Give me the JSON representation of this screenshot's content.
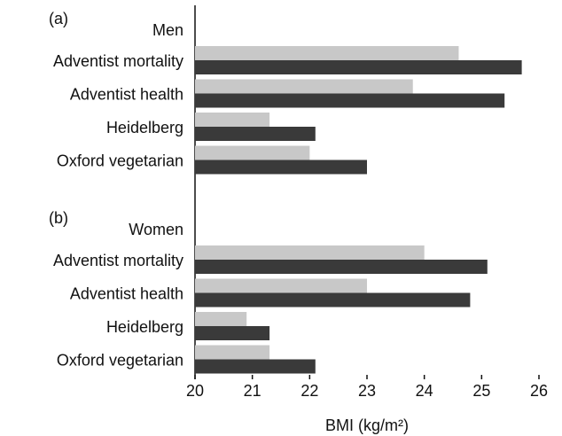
{
  "chart_data": [
    {
      "type": "bar",
      "label": "(a)",
      "title": "Men",
      "categories": [
        "Adventist mortality",
        "Adventist health",
        "Heidelberg",
        "Oxford vegetarian"
      ],
      "series": [
        {
          "color": "#c8c8c8",
          "values": [
            24.6,
            23.8,
            21.3,
            22.0
          ]
        },
        {
          "color": "#3a3a3a",
          "values": [
            25.7,
            25.4,
            22.1,
            23.0
          ]
        }
      ],
      "xlim": [
        20,
        26
      ]
    },
    {
      "type": "bar",
      "label": "(b)",
      "title": "Women",
      "categories": [
        "Adventist mortality",
        "Adventist health",
        "Heidelberg",
        "Oxford vegetarian"
      ],
      "series": [
        {
          "color": "#c8c8c8",
          "values": [
            24.0,
            23.0,
            20.9,
            21.3
          ]
        },
        {
          "color": "#3a3a3a",
          "values": [
            25.1,
            24.8,
            21.3,
            22.1
          ]
        }
      ],
      "xlim": [
        20,
        26
      ],
      "xticks": [
        20,
        21,
        22,
        23,
        24,
        25,
        26
      ],
      "xlabel": "BMI (kg/m²)"
    }
  ]
}
